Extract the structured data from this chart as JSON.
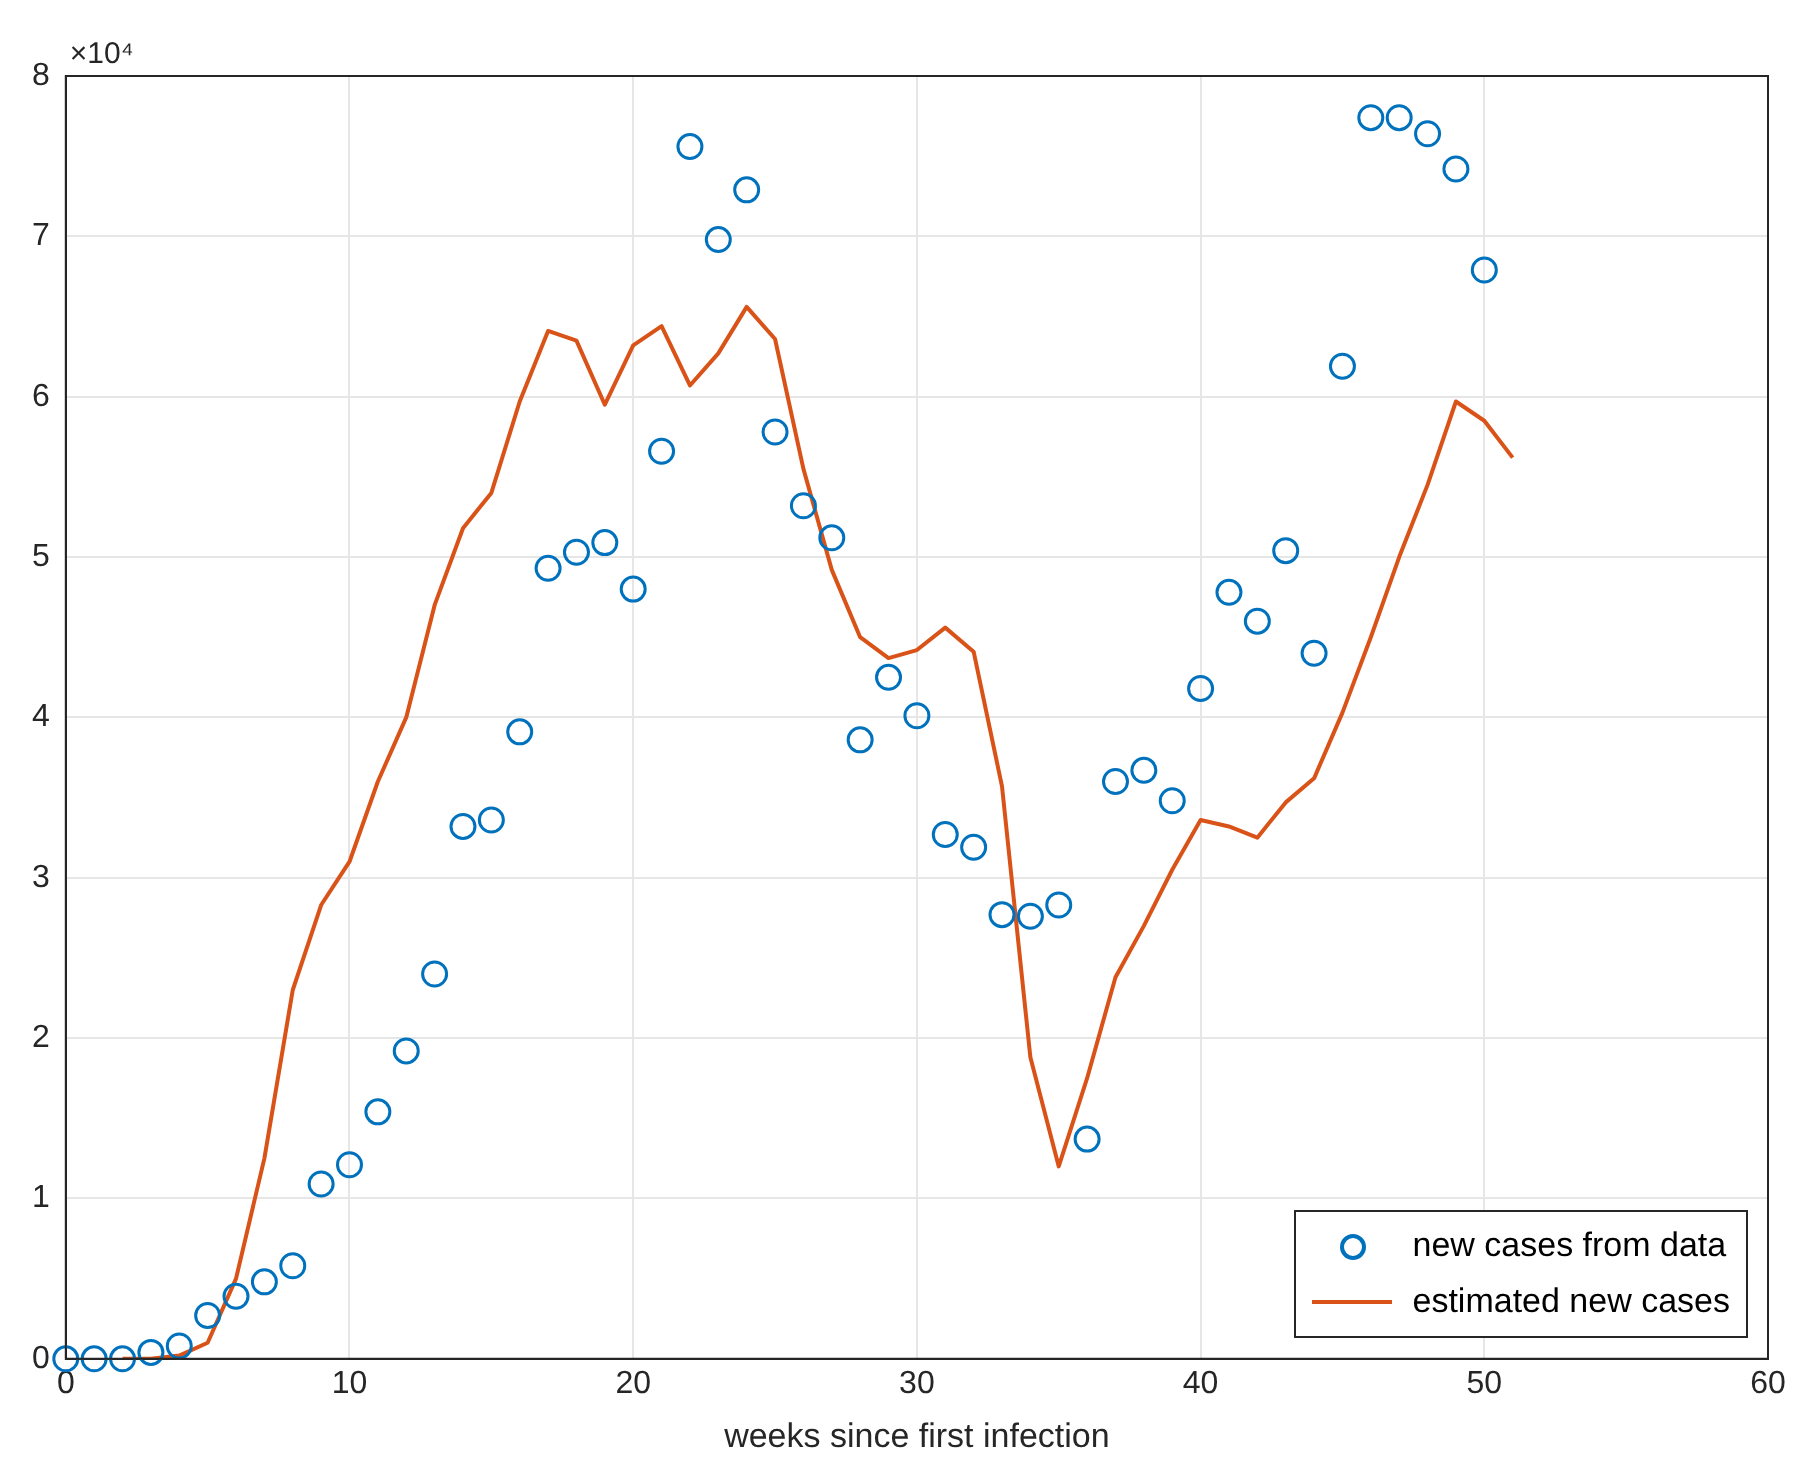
{
  "chart_data": {
    "type": "scatter",
    "xlabel": "weeks since first infection",
    "annotations": [
      "×10⁴"
    ],
    "xlim": [
      0,
      60
    ],
    "xticks": [
      0,
      10,
      20,
      30,
      40,
      50,
      60
    ],
    "ylim": [
      0,
      8
    ],
    "yticks": [
      0,
      1,
      2,
      3,
      4,
      5,
      6,
      7,
      8
    ],
    "grid": true,
    "legend": "bottom right",
    "series": [
      {
        "name": "new cases from data",
        "type": "scatter",
        "marker": "circle",
        "color": "#0072bd",
        "x": [
          0,
          1,
          2,
          3,
          4,
          5,
          6,
          7,
          8,
          9,
          10,
          11,
          12,
          13,
          14,
          15,
          16,
          17,
          18,
          19,
          20,
          21,
          22,
          23,
          24,
          25,
          26,
          27,
          28,
          29,
          30,
          31,
          32,
          33,
          34,
          35,
          36,
          37,
          38,
          39,
          40,
          41,
          42,
          43,
          44,
          45,
          46,
          47,
          48,
          49,
          50
        ],
        "values": [
          0,
          0,
          0,
          0.04,
          0.08,
          0.27,
          0.39,
          0.48,
          0.58,
          1.09,
          1.21,
          1.54,
          1.92,
          2.4,
          3.32,
          3.36,
          3.91,
          4.93,
          5.03,
          5.09,
          4.8,
          5.66,
          7.56,
          6.98,
          7.29,
          5.78,
          5.32,
          5.12,
          3.86,
          4.25,
          4.01,
          3.27,
          3.19,
          2.77,
          2.76,
          2.83,
          1.37,
          3.6,
          3.67,
          3.48,
          4.18,
          4.78,
          4.6,
          5.04,
          4.4,
          6.19,
          7.74,
          7.74,
          7.64,
          7.42,
          6.79
        ]
      },
      {
        "name": "estimated new cases",
        "type": "line",
        "marker": "none",
        "line_style": "solid",
        "color": "#d95319",
        "x": [
          2,
          3,
          4,
          5,
          6,
          7,
          8,
          9,
          10,
          11,
          12,
          13,
          14,
          15,
          16,
          17,
          18,
          19,
          20,
          21,
          22,
          23,
          24,
          25,
          26,
          27,
          28,
          29,
          30,
          31,
          32,
          33,
          34,
          35,
          36,
          37,
          38,
          39,
          40,
          41,
          42,
          43,
          44,
          45,
          46,
          47,
          48,
          49,
          50,
          51
        ],
        "values": [
          0,
          0,
          0.02,
          0.1,
          0.5,
          1.25,
          2.3,
          2.83,
          3.1,
          3.6,
          4.0,
          4.7,
          5.18,
          5.4,
          5.97,
          6.41,
          6.35,
          5.95,
          6.32,
          6.44,
          6.07,
          6.27,
          6.56,
          6.36,
          5.55,
          4.92,
          4.5,
          4.37,
          4.42,
          4.56,
          4.41,
          3.57,
          1.88,
          1.2,
          1.75,
          2.38,
          2.7,
          3.05,
          3.36,
          3.32,
          3.25,
          3.47,
          3.62,
          4.03,
          4.5,
          5.0,
          5.45,
          5.97,
          5.85,
          5.62
        ]
      }
    ]
  }
}
